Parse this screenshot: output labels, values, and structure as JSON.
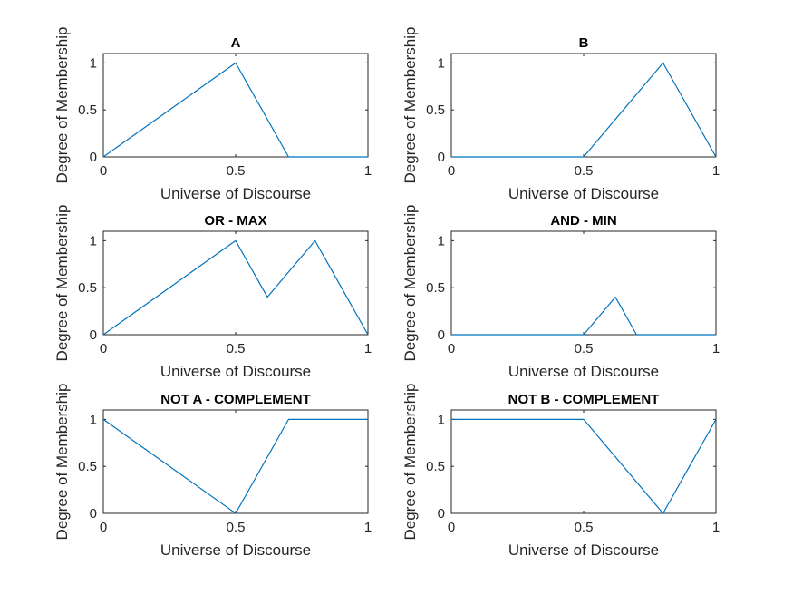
{
  "figure": {
    "background": "#ffffff",
    "line_color": "#0072BD",
    "axis_color": "#262626"
  },
  "chart_data": [
    {
      "type": "line",
      "title": "A",
      "xlabel": "Universe of Discourse",
      "ylabel": "Degree of Membership",
      "xlim": [
        0,
        1
      ],
      "ylim": [
        0,
        1.1
      ],
      "xticks": [
        0,
        0.5,
        1
      ],
      "xtick_labels": [
        "0",
        "0.5",
        "1"
      ],
      "yticks": [
        0,
        0.5,
        1
      ],
      "ytick_labels": [
        "0",
        "0.5",
        "1"
      ],
      "series": [
        {
          "x": [
            0,
            0.5,
            0.7,
            1
          ],
          "y": [
            0,
            1,
            0,
            0
          ]
        }
      ]
    },
    {
      "type": "line",
      "title": "B",
      "xlabel": "Universe of Discourse",
      "ylabel": "Degree of Membership",
      "xlim": [
        0,
        1
      ],
      "ylim": [
        0,
        1.1
      ],
      "xticks": [
        0,
        0.5,
        1
      ],
      "xtick_labels": [
        "0",
        "0.5",
        "1"
      ],
      "yticks": [
        0,
        0.5,
        1
      ],
      "ytick_labels": [
        "0",
        "0.5",
        "1"
      ],
      "series": [
        {
          "x": [
            0,
            0.5,
            0.8,
            1
          ],
          "y": [
            0,
            0,
            1,
            0
          ]
        }
      ]
    },
    {
      "type": "line",
      "title": "OR - MAX",
      "xlabel": "Universe of Discourse",
      "ylabel": "Degree of Membership",
      "xlim": [
        0,
        1
      ],
      "ylim": [
        0,
        1.1
      ],
      "xticks": [
        0,
        0.5,
        1
      ],
      "xtick_labels": [
        "0",
        "0.5",
        "1"
      ],
      "yticks": [
        0,
        0.5,
        1
      ],
      "ytick_labels": [
        "0",
        "0.5",
        "1"
      ],
      "series": [
        {
          "x": [
            0,
            0.5,
            0.62,
            0.8,
            1
          ],
          "y": [
            0,
            1,
            0.4,
            1,
            0
          ]
        }
      ]
    },
    {
      "type": "line",
      "title": "AND - MIN",
      "xlabel": "Universe of Discourse",
      "ylabel": "Degree of Membership",
      "xlim": [
        0,
        1
      ],
      "ylim": [
        0,
        1.1
      ],
      "xticks": [
        0,
        0.5,
        1
      ],
      "xtick_labels": [
        "0",
        "0.5",
        "1"
      ],
      "yticks": [
        0,
        0.5,
        1
      ],
      "ytick_labels": [
        "0",
        "0.5",
        "1"
      ],
      "series": [
        {
          "x": [
            0,
            0.5,
            0.62,
            0.7,
            1
          ],
          "y": [
            0,
            0,
            0.4,
            0,
            0
          ]
        }
      ]
    },
    {
      "type": "line",
      "title": "NOT A - COMPLEMENT",
      "xlabel": "Universe of Discourse",
      "ylabel": "Degree of Membership",
      "xlim": [
        0,
        1
      ],
      "ylim": [
        0,
        1.1
      ],
      "xticks": [
        0,
        0.5,
        1
      ],
      "xtick_labels": [
        "0",
        "0.5",
        "1"
      ],
      "yticks": [
        0,
        0.5,
        1
      ],
      "ytick_labels": [
        "0",
        "0.5",
        "1"
      ],
      "series": [
        {
          "x": [
            0,
            0.5,
            0.7,
            1
          ],
          "y": [
            1,
            0,
            1,
            1
          ]
        }
      ]
    },
    {
      "type": "line",
      "title": "NOT B - COMPLEMENT",
      "xlabel": "Universe of Discourse",
      "ylabel": "Degree of Membership",
      "xlim": [
        0,
        1
      ],
      "ylim": [
        0,
        1.1
      ],
      "xticks": [
        0,
        0.5,
        1
      ],
      "xtick_labels": [
        "0",
        "0.5",
        "1"
      ],
      "yticks": [
        0,
        0.5,
        1
      ],
      "ytick_labels": [
        "0",
        "0.5",
        "1"
      ],
      "series": [
        {
          "x": [
            0,
            0.5,
            0.8,
            1
          ],
          "y": [
            1,
            1,
            0,
            1
          ]
        }
      ]
    }
  ]
}
